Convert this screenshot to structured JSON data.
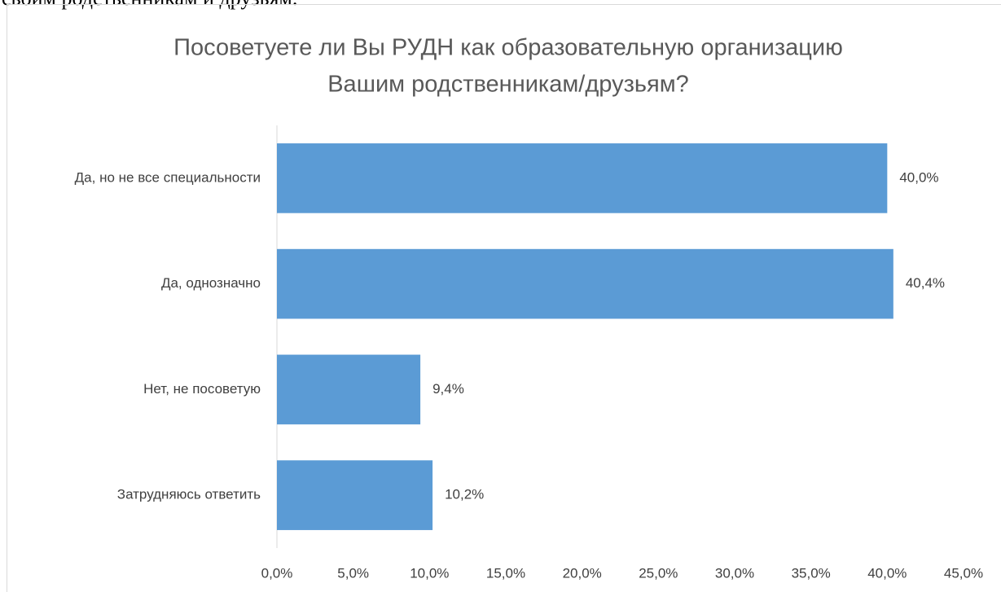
{
  "context_text": "своим родственникам и друзьям.",
  "chart_data": {
    "type": "barh",
    "title": [
      "Посоветуете ли Вы РУДН как образовательную организацию",
      "Вашим родственникам/друзьям?"
    ],
    "categories": [
      "Да, но не все специальности",
      "Да, однозначно",
      "Нет, не посоветую",
      "Затрудняюсь ответить"
    ],
    "values": [
      40.0,
      40.4,
      9.4,
      10.2
    ],
    "value_labels": [
      "40,0%",
      "40,4%",
      "9,4%",
      "10,2%"
    ],
    "color": "#5b9bd5",
    "xlim": [
      0,
      45
    ],
    "xticks": [
      {
        "value": 0,
        "label": "0,0%"
      },
      {
        "value": 5,
        "label": "5,0%"
      },
      {
        "value": 10,
        "label": "10,0%"
      },
      {
        "value": 15,
        "label": "15,0%"
      },
      {
        "value": 20,
        "label": "20,0%"
      },
      {
        "value": 25,
        "label": "25,0%"
      },
      {
        "value": 30,
        "label": "30,0%"
      },
      {
        "value": 35,
        "label": "35,0%"
      },
      {
        "value": 40,
        "label": "40,0%"
      },
      {
        "value": 45,
        "label": "45,0%"
      }
    ],
    "grid": false
  }
}
